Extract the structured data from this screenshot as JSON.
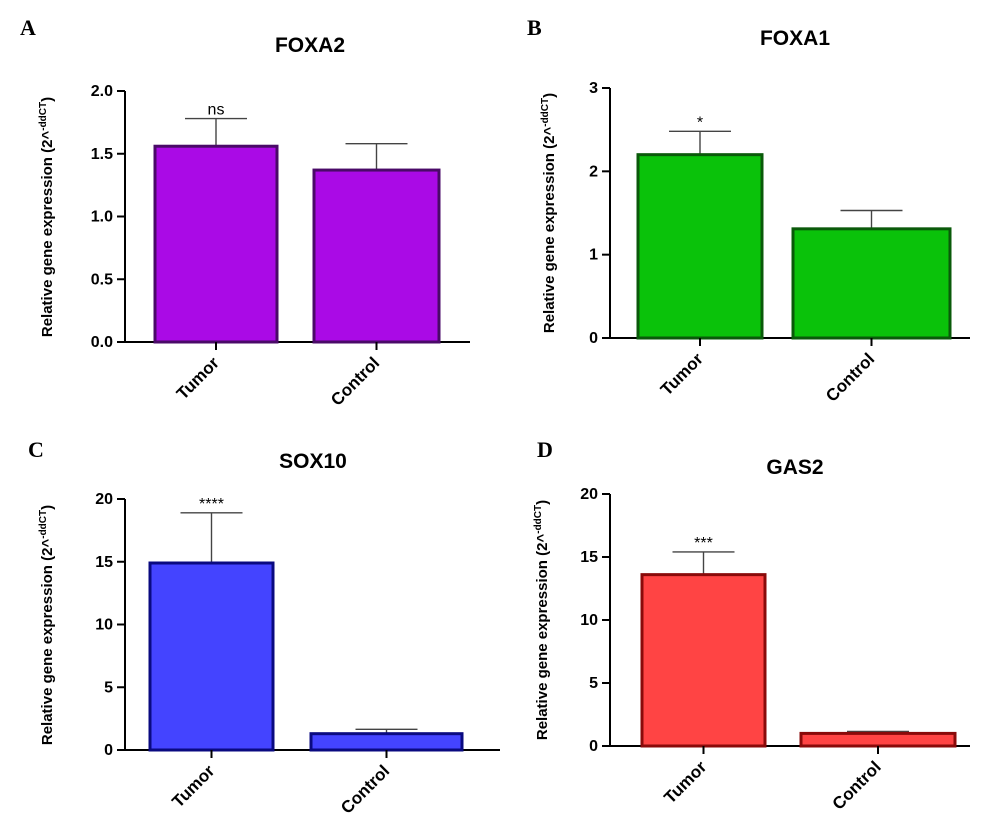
{
  "chart_data": [
    {
      "panel": "A",
      "type": "bar",
      "title": "FOXA2",
      "ylabel_main": "Relative gene expression (2^",
      "ylabel_sup": "-ddCT",
      "ylabel_close": ")",
      "categories": [
        "Tumor",
        "Control"
      ],
      "values": [
        1.56,
        1.37
      ],
      "errors": [
        0.22,
        0.21
      ],
      "significance": [
        "ns",
        ""
      ],
      "ylim": [
        0,
        2.0
      ],
      "yticks": [
        0,
        0.5,
        1.0,
        1.5,
        2.0
      ],
      "ytick_labels": [
        "0.0",
        "0.5",
        "1.0",
        "1.5",
        "2.0"
      ],
      "fill_color": "#aa0ae6",
      "stroke_color": "#4a0a68",
      "grid": false
    },
    {
      "panel": "B",
      "type": "bar",
      "title": "FOXA1",
      "ylabel_main": "Relative gene expression (2^",
      "ylabel_sup": "-ddCT",
      "ylabel_close": ")",
      "categories": [
        "Tumor",
        "Control"
      ],
      "values": [
        2.2,
        1.31
      ],
      "errors": [
        0.28,
        0.22
      ],
      "significance": [
        "*",
        ""
      ],
      "ylim": [
        0,
        3
      ],
      "yticks": [
        0,
        1,
        2,
        3
      ],
      "ytick_labels": [
        "0",
        "1",
        "2",
        "3"
      ],
      "fill_color": "#0ac20a",
      "stroke_color": "#0a5a0a",
      "grid": false
    },
    {
      "panel": "C",
      "type": "bar",
      "title": "SOX10",
      "ylabel_main": "Relative gene expression (2^",
      "ylabel_sup": "-ddCT",
      "ylabel_close": ")",
      "categories": [
        "Tumor",
        "Control"
      ],
      "values": [
        14.9,
        1.3
      ],
      "errors": [
        4.0,
        0.35
      ],
      "significance": [
        "****",
        ""
      ],
      "ylim": [
        0,
        20
      ],
      "yticks": [
        0,
        5,
        10,
        15,
        20
      ],
      "ytick_labels": [
        "0",
        "5",
        "10",
        "15",
        "20"
      ],
      "fill_color": "#4444ff",
      "stroke_color": "#0a0a80",
      "grid": false
    },
    {
      "panel": "D",
      "type": "bar",
      "title": "GAS2",
      "ylabel_main": "Relative gene expression (2^",
      "ylabel_sup": "-ddCT",
      "ylabel_close": ")",
      "categories": [
        "Tumor",
        "Control"
      ],
      "values": [
        13.6,
        1.0
      ],
      "errors": [
        1.8,
        0.15
      ],
      "significance": [
        "***",
        ""
      ],
      "ylim": [
        0,
        20
      ],
      "yticks": [
        0,
        5,
        10,
        15,
        20
      ],
      "ytick_labels": [
        "0",
        "5",
        "10",
        "15",
        "20"
      ],
      "fill_color": "#ff4444",
      "stroke_color": "#8a0a0a",
      "grid": false
    }
  ]
}
